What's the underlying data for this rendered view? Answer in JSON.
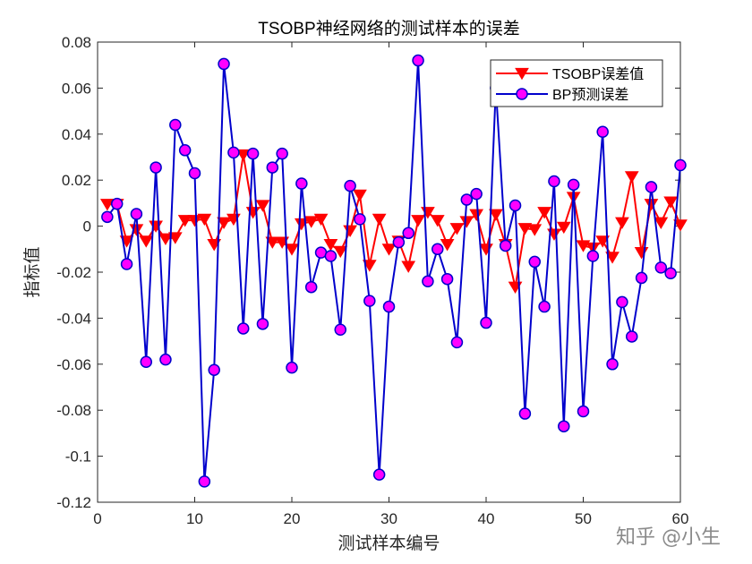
{
  "chart_data": {
    "type": "line",
    "title": "TSOBP神经网络的测试样本的误差",
    "xlabel": "测试样本编号",
    "ylabel": "指标值",
    "xlim": [
      0,
      60
    ],
    "ylim": [
      -0.12,
      0.08
    ],
    "xticks": [
      0,
      10,
      20,
      30,
      40,
      50,
      60
    ],
    "yticks": [
      -0.12,
      -0.1,
      -0.08,
      -0.06,
      -0.04,
      -0.02,
      0,
      0.02,
      0.04,
      0.06,
      0.08
    ],
    "xtick_labels": [
      "0",
      "10",
      "20",
      "30",
      "40",
      "50",
      "60"
    ],
    "ytick_labels": [
      "-0.12",
      "-0.1",
      "-0.08",
      "-0.06",
      "-0.04",
      "-0.02",
      "0",
      "0.02",
      "0.04",
      "0.06",
      "0.08"
    ],
    "grid": false,
    "legend_position": "top-right",
    "x": [
      1,
      2,
      3,
      4,
      5,
      6,
      7,
      8,
      9,
      10,
      11,
      12,
      13,
      14,
      15,
      16,
      17,
      18,
      19,
      20,
      21,
      22,
      23,
      24,
      25,
      26,
      27,
      28,
      29,
      30,
      31,
      32,
      33,
      34,
      35,
      36,
      37,
      38,
      39,
      40,
      41,
      42,
      43,
      44,
      45,
      46,
      47,
      48,
      49,
      50,
      51,
      52,
      53,
      54,
      55,
      56,
      57,
      58,
      59,
      60
    ],
    "series": [
      {
        "name": "TSOBP误差值",
        "color": "#ff0000",
        "marker": "triangle-down",
        "marker_color": "#ff0000",
        "values": [
          0.0095,
          0.0095,
          -0.0065,
          -0.0015,
          -0.0065,
          0,
          -0.0055,
          -0.005,
          0.0025,
          0.0025,
          0.003,
          -0.008,
          0.0015,
          0.003,
          0.031,
          0.006,
          0.009,
          -0.007,
          -0.007,
          -0.01,
          0.001,
          0.002,
          0.003,
          -0.008,
          -0.011,
          -0.002,
          0.0135,
          -0.017,
          0.003,
          -0.01,
          -0.0065,
          -0.0175,
          0.0025,
          0.006,
          0.0025,
          -0.008,
          -0.001,
          0.002,
          0.005,
          -0.01,
          0.005,
          -0.008,
          -0.0265,
          -0.001,
          -0.0015,
          0.006,
          -0.0035,
          -0.0005,
          0.0125,
          -0.0085,
          -0.0095,
          -0.0065,
          -0.0135,
          0.0015,
          0.0215,
          -0.0115,
          0.0095,
          0.0015,
          0.0105,
          0.0005
        ]
      },
      {
        "name": "BP预测误差",
        "color": "#0000cc",
        "marker": "circle",
        "marker_color": "#ff00ff",
        "values": [
          0.004,
          0.0097,
          -0.0165,
          0.0053,
          -0.059,
          0.0255,
          -0.058,
          0.044,
          0.033,
          0.023,
          -0.111,
          -0.0625,
          0.0705,
          0.032,
          -0.0445,
          0.0315,
          -0.0425,
          0.0255,
          0.0315,
          -0.0615,
          0.0185,
          -0.0265,
          -0.0115,
          -0.013,
          -0.045,
          0.0175,
          0.003,
          -0.0325,
          -0.108,
          -0.035,
          -0.007,
          -0.003,
          0.072,
          -0.024,
          -0.01,
          -0.023,
          -0.0505,
          0.0115,
          0.014,
          -0.042,
          0.06,
          -0.0085,
          0.009,
          -0.0815,
          -0.0155,
          -0.035,
          0.0195,
          -0.087,
          0.018,
          -0.0805,
          -0.013,
          0.041,
          -0.06,
          -0.033,
          -0.048,
          -0.0225,
          0.017,
          -0.018,
          -0.0205,
          0.0265
        ]
      }
    ]
  },
  "watermark": "知乎 @小生"
}
